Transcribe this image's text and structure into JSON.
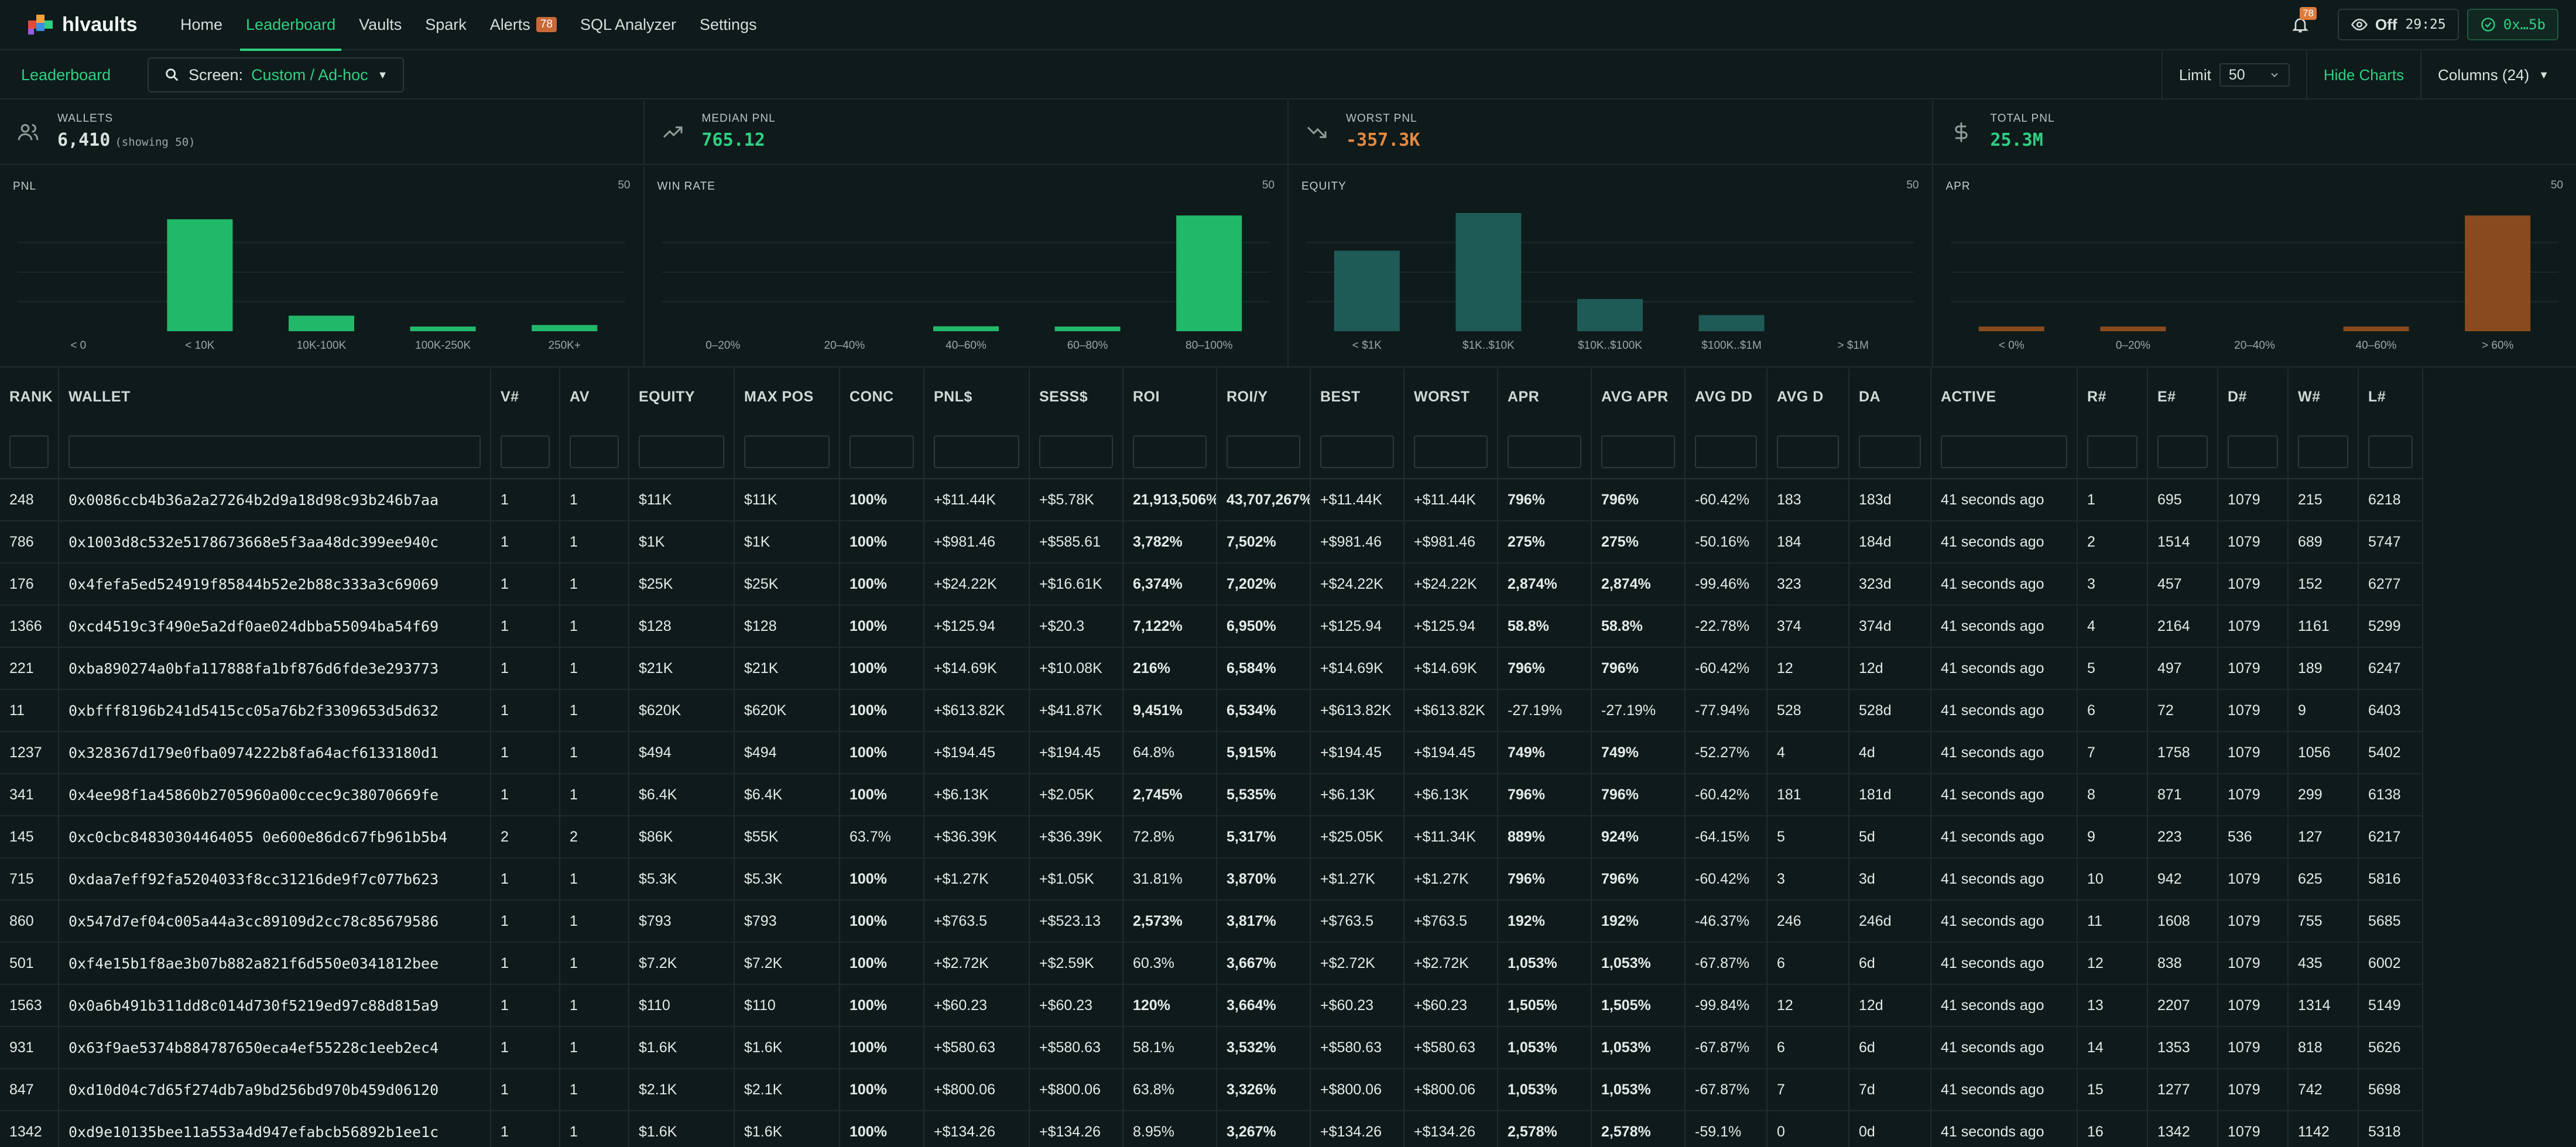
{
  "nav": {
    "logo": "hlvaults",
    "items": [
      "Home",
      "Leaderboard",
      "Vaults",
      "Spark",
      "Alerts",
      "SQL Analyzer",
      "Settings"
    ],
    "active": "Leaderboard",
    "alerts_badge": "78",
    "bell_badge": "78",
    "toggle_label": "Off",
    "timer": "29:25",
    "account": "0x…5b"
  },
  "toolbar": {
    "title": "Leaderboard",
    "screen_label": "Screen:",
    "screen_value": "Custom / Ad-hoc",
    "limit_label": "Limit",
    "limit_value": "50",
    "hide_charts": "Hide Charts",
    "columns": "Columns (24)"
  },
  "stats": [
    {
      "label": "WALLETS",
      "value": "6,410",
      "sub": "(showing 50)",
      "icon": "users-icon",
      "color": "#e4ebea"
    },
    {
      "label": "MEDIAN PNL",
      "value": "765.12",
      "sub": "",
      "icon": "trending-up-icon",
      "color": "#2fd082"
    },
    {
      "label": "WORST PNL",
      "value": "-357.3K",
      "sub": "",
      "icon": "trending-down-icon",
      "color": "#e58a3e"
    },
    {
      "label": "TOTAL PNL",
      "value": "25.3M",
      "sub": "",
      "icon": "dollar-icon",
      "color": "#2fd082"
    }
  ],
  "chart_data": [
    {
      "type": "bar",
      "title": "PNL",
      "count": "50",
      "color": "#22b86a",
      "categories": [
        "< 0",
        "< 10K",
        "10K-100K",
        "100K-250K",
        "250K+"
      ],
      "values": [
        0,
        36,
        5,
        1,
        2
      ],
      "ylim": [
        0,
        38
      ]
    },
    {
      "type": "bar",
      "title": "WIN RATE",
      "count": "50",
      "color": "#22b86a",
      "categories": [
        "0–20%",
        "20–40%",
        "40–60%",
        "60–80%",
        "80–100%"
      ],
      "values": [
        0,
        0,
        2,
        1,
        47
      ],
      "ylim": [
        0,
        48
      ]
    },
    {
      "type": "bar",
      "title": "EQUITY",
      "count": "50",
      "color": "#1f5b56",
      "categories": [
        "< $1K",
        "$1K..$10K",
        "$10K..$100K",
        "$100K..$1M",
        "> $1M"
      ],
      "values": [
        15,
        22,
        6,
        3,
        0
      ],
      "ylim": [
        0,
        22
      ]
    },
    {
      "type": "bar",
      "title": "APR",
      "count": "50",
      "color": "#8a4a1f",
      "categories": [
        "< 0%",
        "0–20%",
        "20–40%",
        "40–60%",
        "> 60%"
      ],
      "values": [
        1,
        1,
        0,
        1,
        47
      ],
      "ylim": [
        0,
        48
      ]
    }
  ],
  "table": {
    "columns": [
      "RANK",
      "WALLET",
      "V#",
      "AV",
      "EQUITY",
      "MAX POS",
      "CONC",
      "PNL$",
      "SESS$",
      "ROI",
      "ROI/Y",
      "BEST",
      "WORST",
      "APR",
      "AVG APR",
      "AVG DD",
      "AVG D",
      "DA",
      "ACTIVE",
      "R#",
      "E#",
      "D#",
      "W#",
      "L#"
    ],
    "rows": [
      [
        "248",
        "0x0086ccb4b36a2a27264b2d9a18d98c93b246b7aa",
        "1",
        "1",
        "$11K",
        "$11K",
        "100%",
        "+$11.44K",
        "+$5.78K",
        "21,913,506%",
        "43,707,267%",
        "+$11.44K",
        "+$11.44K",
        "796%",
        "796%",
        "-60.42%",
        "183",
        "183d",
        "41 seconds ago",
        "1",
        "695",
        "1079",
        "215",
        "6218"
      ],
      [
        "786",
        "0x1003d8c532e5178673668e5f3aa48dc399ee940c",
        "1",
        "1",
        "$1K",
        "$1K",
        "100%",
        "+$981.46",
        "+$585.61",
        "3,782%",
        "7,502%",
        "+$981.46",
        "+$981.46",
        "275%",
        "275%",
        "-50.16%",
        "184",
        "184d",
        "41 seconds ago",
        "2",
        "1514",
        "1079",
        "689",
        "5747"
      ],
      [
        "176",
        "0x4fefa5ed524919f85844b52e2b88c333a3c69069",
        "1",
        "1",
        "$25K",
        "$25K",
        "100%",
        "+$24.22K",
        "+$16.61K",
        "6,374%",
        "7,202%",
        "+$24.22K",
        "+$24.22K",
        "2,874%",
        "2,874%",
        "-99.46%",
        "323",
        "323d",
        "41 seconds ago",
        "3",
        "457",
        "1079",
        "152",
        "6277"
      ],
      [
        "1366",
        "0xcd4519c3f490e5a2df0ae024dbba55094ba54f69",
        "1",
        "1",
        "$128",
        "$128",
        "100%",
        "+$125.94",
        "+$20.3",
        "7,122%",
        "6,950%",
        "+$125.94",
        "+$125.94",
        "58.8%",
        "58.8%",
        "-22.78%",
        "374",
        "374d",
        "41 seconds ago",
        "4",
        "2164",
        "1079",
        "1161",
        "5299"
      ],
      [
        "221",
        "0xba890274a0bfa117888fa1bf876d6fde3e293773",
        "1",
        "1",
        "$21K",
        "$21K",
        "100%",
        "+$14.69K",
        "+$10.08K",
        "216%",
        "6,584%",
        "+$14.69K",
        "+$14.69K",
        "796%",
        "796%",
        "-60.42%",
        "12",
        "12d",
        "41 seconds ago",
        "5",
        "497",
        "1079",
        "189",
        "6247"
      ],
      [
        "11",
        "0xbfff8196b241d5415cc05a76b2f3309653d5d632",
        "1",
        "1",
        "$620K",
        "$620K",
        "100%",
        "+$613.82K",
        "+$41.87K",
        "9,451%",
        "6,534%",
        "+$613.82K",
        "+$613.82K",
        "-27.19%",
        "-27.19%",
        "-77.94%",
        "528",
        "528d",
        "41 seconds ago",
        "6",
        "72",
        "1079",
        "9",
        "6403"
      ],
      [
        "1237",
        "0x328367d179e0fba0974222b8fa64acf6133180d1",
        "1",
        "1",
        "$494",
        "$494",
        "100%",
        "+$194.45",
        "+$194.45",
        "64.8%",
        "5,915%",
        "+$194.45",
        "+$194.45",
        "749%",
        "749%",
        "-52.27%",
        "4",
        "4d",
        "41 seconds ago",
        "7",
        "1758",
        "1079",
        "1056",
        "5402"
      ],
      [
        "341",
        "0x4ee98f1a45860b2705960a00ccec9c38070669fe",
        "1",
        "1",
        "$6.4K",
        "$6.4K",
        "100%",
        "+$6.13K",
        "+$2.05K",
        "2,745%",
        "5,535%",
        "+$6.13K",
        "+$6.13K",
        "796%",
        "796%",
        "-60.42%",
        "181",
        "181d",
        "41 seconds ago",
        "8",
        "871",
        "1079",
        "299",
        "6138"
      ],
      [
        "145",
        "0xc0cbc84830304464055 0e600e86dc67fb961b5b4",
        "2",
        "2",
        "$86K",
        "$55K",
        "63.7%",
        "+$36.39K",
        "+$36.39K",
        "72.8%",
        "5,317%",
        "+$25.05K",
        "+$11.34K",
        "889%",
        "924%",
        "-64.15%",
        "5",
        "5d",
        "41 seconds ago",
        "9",
        "223",
        "536",
        "127",
        "6217"
      ],
      [
        "715",
        "0xdaa7eff92fa5204033f8cc31216de9f7c077b623",
        "1",
        "1",
        "$5.3K",
        "$5.3K",
        "100%",
        "+$1.27K",
        "+$1.05K",
        "31.81%",
        "3,870%",
        "+$1.27K",
        "+$1.27K",
        "796%",
        "796%",
        "-60.42%",
        "3",
        "3d",
        "41 seconds ago",
        "10",
        "942",
        "1079",
        "625",
        "5816"
      ],
      [
        "860",
        "0x547d7ef04c005a44a3cc89109d2cc78c85679586",
        "1",
        "1",
        "$793",
        "$793",
        "100%",
        "+$763.5",
        "+$523.13",
        "2,573%",
        "3,817%",
        "+$763.5",
        "+$763.5",
        "192%",
        "192%",
        "-46.37%",
        "246",
        "246d",
        "41 seconds ago",
        "11",
        "1608",
        "1079",
        "755",
        "5685"
      ],
      [
        "501",
        "0xf4e15b1f8ae3b07b882a821f6d550e0341812bee",
        "1",
        "1",
        "$7.2K",
        "$7.2K",
        "100%",
        "+$2.72K",
        "+$2.59K",
        "60.3%",
        "3,667%",
        "+$2.72K",
        "+$2.72K",
        "1,053%",
        "1,053%",
        "-67.87%",
        "6",
        "6d",
        "41 seconds ago",
        "12",
        "838",
        "1079",
        "435",
        "6002"
      ],
      [
        "1563",
        "0x0a6b491b311dd8c014d730f5219ed97c88d815a9",
        "1",
        "1",
        "$110",
        "$110",
        "100%",
        "+$60.23",
        "+$60.23",
        "120%",
        "3,664%",
        "+$60.23",
        "+$60.23",
        "1,505%",
        "1,505%",
        "-99.84%",
        "12",
        "12d",
        "41 seconds ago",
        "13",
        "2207",
        "1079",
        "1314",
        "5149"
      ],
      [
        "931",
        "0x63f9ae5374b884787650eca4ef55228c1eeb2ec4",
        "1",
        "1",
        "$1.6K",
        "$1.6K",
        "100%",
        "+$580.63",
        "+$580.63",
        "58.1%",
        "3,532%",
        "+$580.63",
        "+$580.63",
        "1,053%",
        "1,053%",
        "-67.87%",
        "6",
        "6d",
        "41 seconds ago",
        "14",
        "1353",
        "1079",
        "818",
        "5626"
      ],
      [
        "847",
        "0xd10d04c7d65f274db7a9bd256bd970b459d06120",
        "1",
        "1",
        "$2.1K",
        "$2.1K",
        "100%",
        "+$800.06",
        "+$800.06",
        "63.8%",
        "3,326%",
        "+$800.06",
        "+$800.06",
        "1,053%",
        "1,053%",
        "-67.87%",
        "7",
        "7d",
        "41 seconds ago",
        "15",
        "1277",
        "1079",
        "742",
        "5698"
      ],
      [
        "1342",
        "0xd9e10135bee11a553a4d947efabcb56892b1ee1c",
        "1",
        "1",
        "$1.6K",
        "$1.6K",
        "100%",
        "+$134.26",
        "+$134.26",
        "8.95%",
        "3,267%",
        "+$134.26",
        "+$134.26",
        "2,578%",
        "2,578%",
        "-59.1%",
        "0",
        "0d",
        "41 seconds ago",
        "16",
        "1342",
        "1079",
        "1142",
        "5318"
      ]
    ]
  }
}
